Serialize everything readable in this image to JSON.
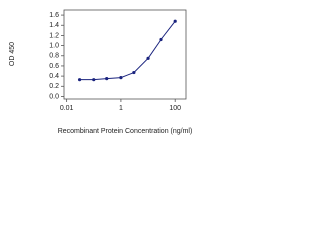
{
  "chart_data": {
    "type": "line",
    "x_label": "Recombinant Protein Concentration (ng/ml)",
    "y_label": "OD 450",
    "x_log": true,
    "series": [
      {
        "color": "#1a237e",
        "x": [
          0.03,
          0.1,
          0.3,
          1,
          3,
          10,
          30,
          100
        ],
        "values": [
          0.33,
          0.33,
          0.35,
          0.37,
          0.47,
          0.75,
          1.12,
          1.48
        ]
      }
    ],
    "xlim": [
      0.008,
      250
    ],
    "xticks": [
      0.01,
      1,
      100
    ],
    "ylim": [
      -0.05,
      1.7
    ],
    "yticks": [
      {
        "value": 0,
        "label": "0.0"
      },
      0.2,
      0.4,
      0.6,
      0.8,
      {
        "value": 1,
        "label": "1.0"
      },
      1.2,
      1.4,
      1.6
    ]
  }
}
